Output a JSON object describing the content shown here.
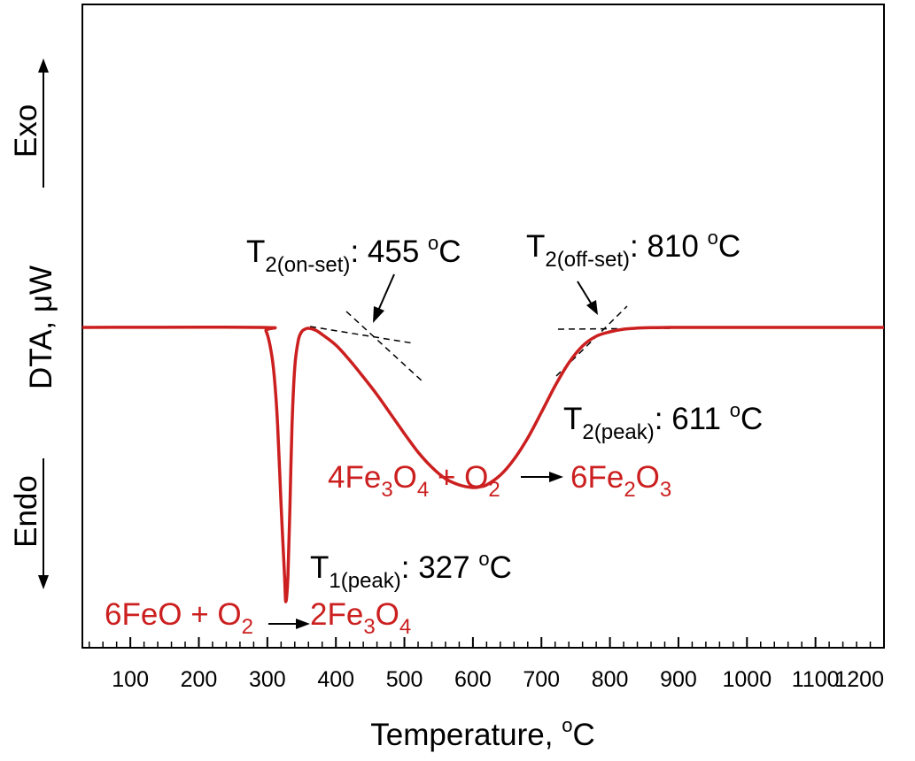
{
  "colors": {
    "curve": "#cc1f1f",
    "text": "#000000",
    "reaction": "#cc1f1f"
  },
  "chart_data": {
    "type": "line",
    "title": "",
    "xlabel": {
      "main": "Temperature, ",
      "sup": "o",
      "unit": "C"
    },
    "ylabel": "DTA, μW",
    "xlim": [
      30,
      1200
    ],
    "xticks": [
      100,
      200,
      300,
      400,
      500,
      600,
      700,
      800,
      900,
      1000,
      1100,
      1200
    ],
    "x_minor_step": 20,
    "grid": false,
    "legend": "none",
    "y_ticks_shown": false,
    "direction_labels": {
      "exo": "Exo",
      "endo": "Endo"
    },
    "series": [
      {
        "x": [
          30,
          290,
          298,
          305,
          310,
          315,
          320,
          325,
          327,
          330,
          333,
          336,
          340,
          345,
          350,
          355,
          360,
          370,
          380,
          400,
          420,
          440,
          460,
          480,
          500,
          520,
          540,
          560,
          580,
          600,
          611,
          620,
          640,
          660,
          680,
          700,
          720,
          740,
          760,
          780,
          800,
          820,
          840,
          860,
          880,
          900,
          950,
          1200
        ],
        "y": [
          0,
          0,
          -0.4,
          -2.5,
          -5.5,
          -11,
          -20,
          -28,
          -31,
          -28,
          -20,
          -11,
          -4.5,
          -1.5,
          -0.5,
          -0.2,
          -0.1,
          -0.3,
          -0.8,
          -2.0,
          -3.7,
          -5.6,
          -7.6,
          -9.8,
          -12.0,
          -14.1,
          -15.8,
          -17.1,
          -17.8,
          -18.1,
          -18.0,
          -17.8,
          -16.7,
          -14.9,
          -12.5,
          -9.6,
          -6.6,
          -4.0,
          -2.1,
          -1.0,
          -0.5,
          -0.2,
          -0.08,
          -0.03,
          -0.01,
          0,
          0,
          0
        ]
      }
    ],
    "annotations": [
      {
        "main": "T",
        "sub": "1(peak)",
        "tail": ": 327 ",
        "sup": "o",
        "unit": "C"
      },
      {
        "main": "T",
        "sub": "2(on-set)",
        "tail": ": 455 ",
        "sup": "o",
        "unit": "C"
      },
      {
        "main": "T",
        "sub": "2(off-set)",
        "tail": ": 810 ",
        "sup": "o",
        "unit": "C"
      },
      {
        "main": "T",
        "sub": "2(peak)",
        "tail": ": 611 ",
        "sup": "o",
        "unit": "C"
      }
    ],
    "reactions": [
      {
        "pre": "6FeO + O",
        "pre_sub": "2",
        "post1": "2Fe",
        "post1_sub": "3",
        "post2": "O",
        "post2_sub": "4"
      },
      {
        "a1": "4Fe",
        "a1_sub": "3",
        "a2": "O",
        "a2_sub": "4",
        "a3": " + O",
        "a3_sub": "2",
        "b1": "6Fe",
        "b1_sub": "2",
        "b2": "O",
        "b2_sub": "3"
      }
    ]
  }
}
